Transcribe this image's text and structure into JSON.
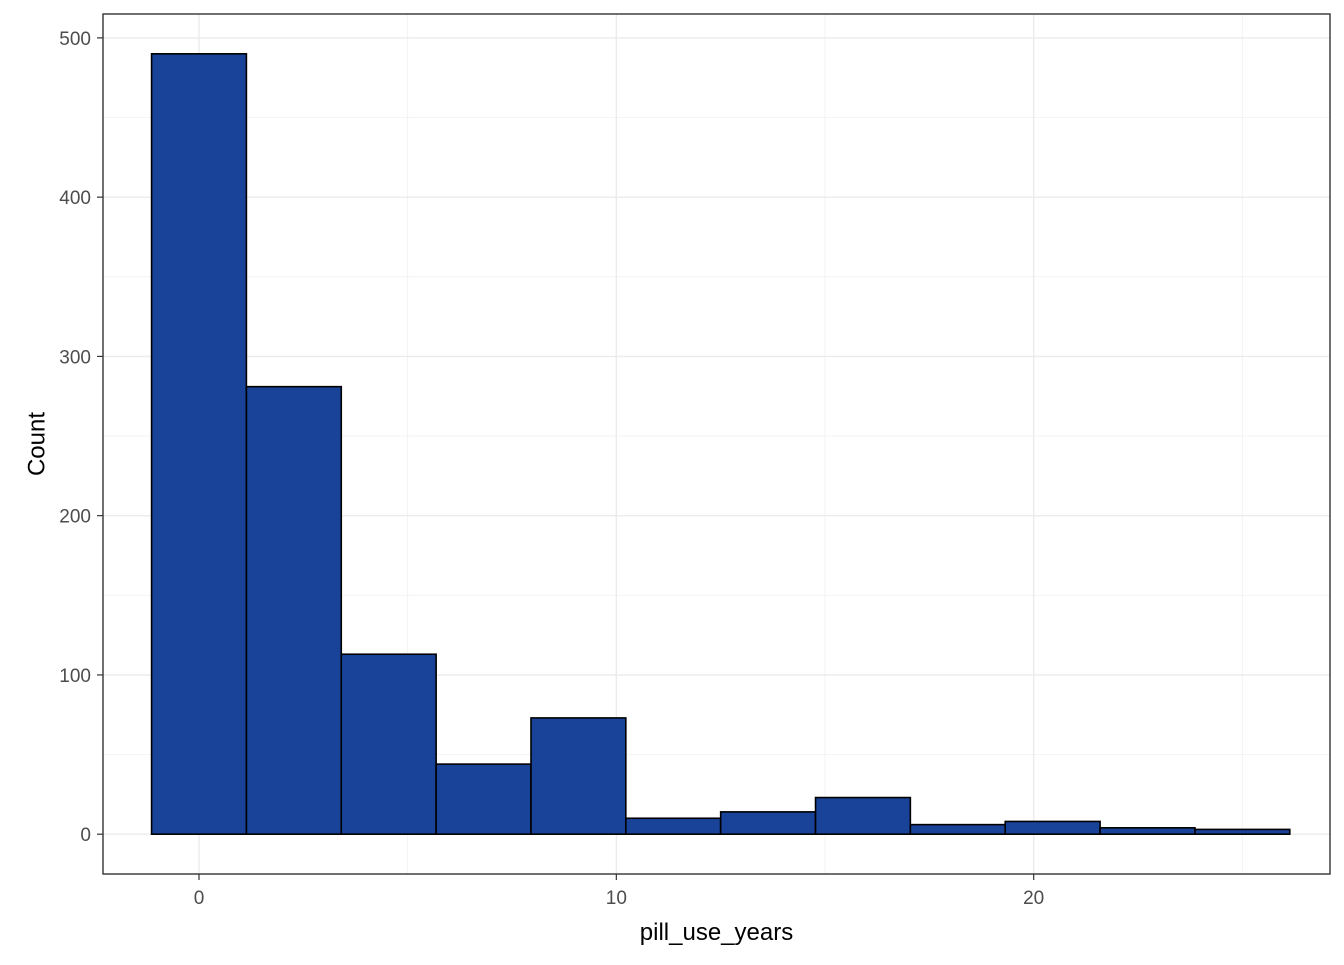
{
  "chart_data": {
    "type": "bar",
    "subtype": "histogram",
    "xlabel": "pill_use_years",
    "ylabel": "Count",
    "xlim": [
      -2.3,
      27.1
    ],
    "ylim": [
      -25,
      515
    ],
    "x_ticks": [
      0,
      10,
      20
    ],
    "x_tick_labels": [
      "0",
      "10",
      "20"
    ],
    "y_ticks": [
      0,
      100,
      200,
      300,
      400,
      500
    ],
    "y_tick_labels": [
      "0",
      "100",
      "200",
      "300",
      "400",
      "500"
    ],
    "grid": true,
    "bin_width": 2.273,
    "bins": [
      {
        "x0": -1.136,
        "x1": 1.136,
        "count": 490
      },
      {
        "x0": 1.136,
        "x1": 3.409,
        "count": 281
      },
      {
        "x0": 3.409,
        "x1": 5.682,
        "count": 113
      },
      {
        "x0": 5.682,
        "x1": 7.955,
        "count": 44
      },
      {
        "x0": 7.955,
        "x1": 10.227,
        "count": 73
      },
      {
        "x0": 10.227,
        "x1": 12.5,
        "count": 10
      },
      {
        "x0": 12.5,
        "x1": 14.773,
        "count": 14
      },
      {
        "x0": 14.773,
        "x1": 17.045,
        "count": 23
      },
      {
        "x0": 17.045,
        "x1": 19.318,
        "count": 6
      },
      {
        "x0": 19.318,
        "x1": 21.591,
        "count": 8
      },
      {
        "x0": 21.591,
        "x1": 23.864,
        "count": 4
      },
      {
        "x0": 23.864,
        "x1": 26.136,
        "count": 3
      }
    ],
    "colors": {
      "bar_fill": "#184399",
      "bar_stroke": "#000000",
      "background": "#ffffff"
    }
  }
}
